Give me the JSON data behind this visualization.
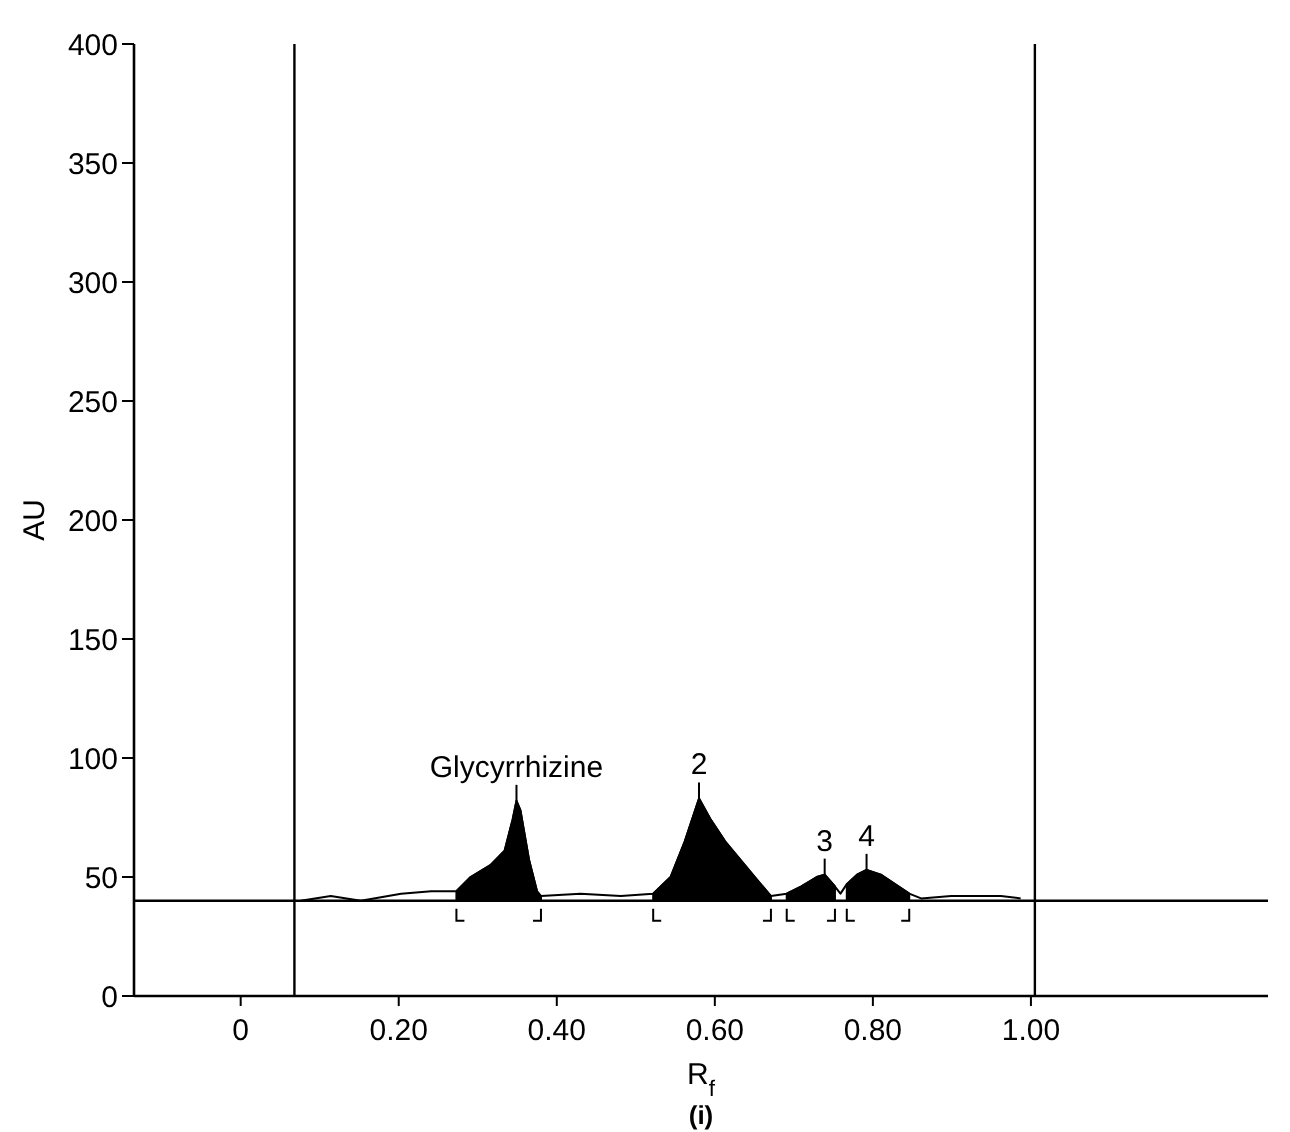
{
  "chart_data": {
    "type": "line",
    "xlabel": "R$_{f}$",
    "ylabel": "AU",
    "xlim": [
      -0.135,
      1.3
    ],
    "ylim": [
      0,
      400
    ],
    "xticks": [
      0,
      {
        "value": 0.2,
        "label": "0.20"
      },
      {
        "value": 0.4,
        "label": "0.40"
      },
      {
        "value": 0.6,
        "label": "0.60"
      },
      {
        "value": 0.8,
        "label": "0.80"
      },
      {
        "value": 1.0,
        "label": "1.00"
      }
    ],
    "yticks": [
      0,
      50,
      100,
      150,
      200,
      250,
      300,
      350,
      400
    ],
    "series": [
      {
        "color": "#000000",
        "x": [
          0.076,
          0.114,
          0.152,
          0.203,
          0.241,
          0.273,
          0.291,
          0.316,
          0.334,
          0.344,
          0.349,
          0.354,
          0.365,
          0.375,
          0.38,
          0.43,
          0.481,
          0.522,
          0.544,
          0.562,
          0.58,
          0.595,
          0.613,
          0.633,
          0.653,
          0.671,
          0.691,
          0.709,
          0.729,
          0.739,
          0.752,
          0.759,
          0.767,
          0.78,
          0.792,
          0.81,
          0.828,
          0.846,
          0.861,
          0.899,
          0.924,
          0.962,
          0.987
        ],
        "values": [
          40,
          42,
          40,
          43,
          44,
          44,
          50,
          55,
          61,
          74,
          82,
          78,
          57,
          44,
          42,
          43,
          42,
          43,
          50,
          65,
          83,
          74,
          65,
          57,
          49,
          42,
          43,
          46,
          50,
          51,
          46,
          43,
          47,
          51,
          53,
          51,
          47,
          43,
          41,
          42,
          42,
          42,
          41
        ]
      },
      {
        "type": "area",
        "color": "#000000",
        "x": [
          0.273,
          0.291,
          0.316,
          0.334,
          0.344,
          0.349,
          0.354,
          0.365,
          0.375,
          0.38
        ],
        "values": [
          44,
          50,
          55,
          61,
          74,
          82,
          78,
          57,
          44,
          42
        ]
      },
      {
        "type": "area",
        "color": "#000000",
        "x": [
          0.522,
          0.544,
          0.562,
          0.58,
          0.595,
          0.613,
          0.633,
          0.653,
          0.671
        ],
        "values": [
          43,
          50,
          65,
          83,
          74,
          65,
          57,
          49,
          42
        ]
      },
      {
        "type": "area",
        "color": "#000000",
        "x": [
          0.691,
          0.709,
          0.729,
          0.739,
          0.752
        ],
        "values": [
          43,
          46,
          50,
          51,
          46
        ]
      },
      {
        "type": "area",
        "color": "#000000",
        "x": [
          0.767,
          0.78,
          0.792,
          0.81,
          0.828,
          0.846
        ],
        "values": [
          47,
          51,
          53,
          51,
          47,
          43
        ]
      }
    ],
    "ref_lines": [
      {
        "axis": "y",
        "value": 40
      },
      {
        "axis": "x",
        "value": 0.068
      },
      {
        "axis": "x",
        "value": 1.005
      }
    ],
    "annotations": [
      {
        "text": "Glycyrrhizine",
        "x": 0.349,
        "y": 82
      },
      {
        "text": "2",
        "x": 0.58,
        "y": 83
      },
      {
        "text": "3",
        "x": 0.739,
        "y": 51
      },
      {
        "text": "4",
        "x": 0.792,
        "y": 53
      },
      "(i)"
    ]
  }
}
